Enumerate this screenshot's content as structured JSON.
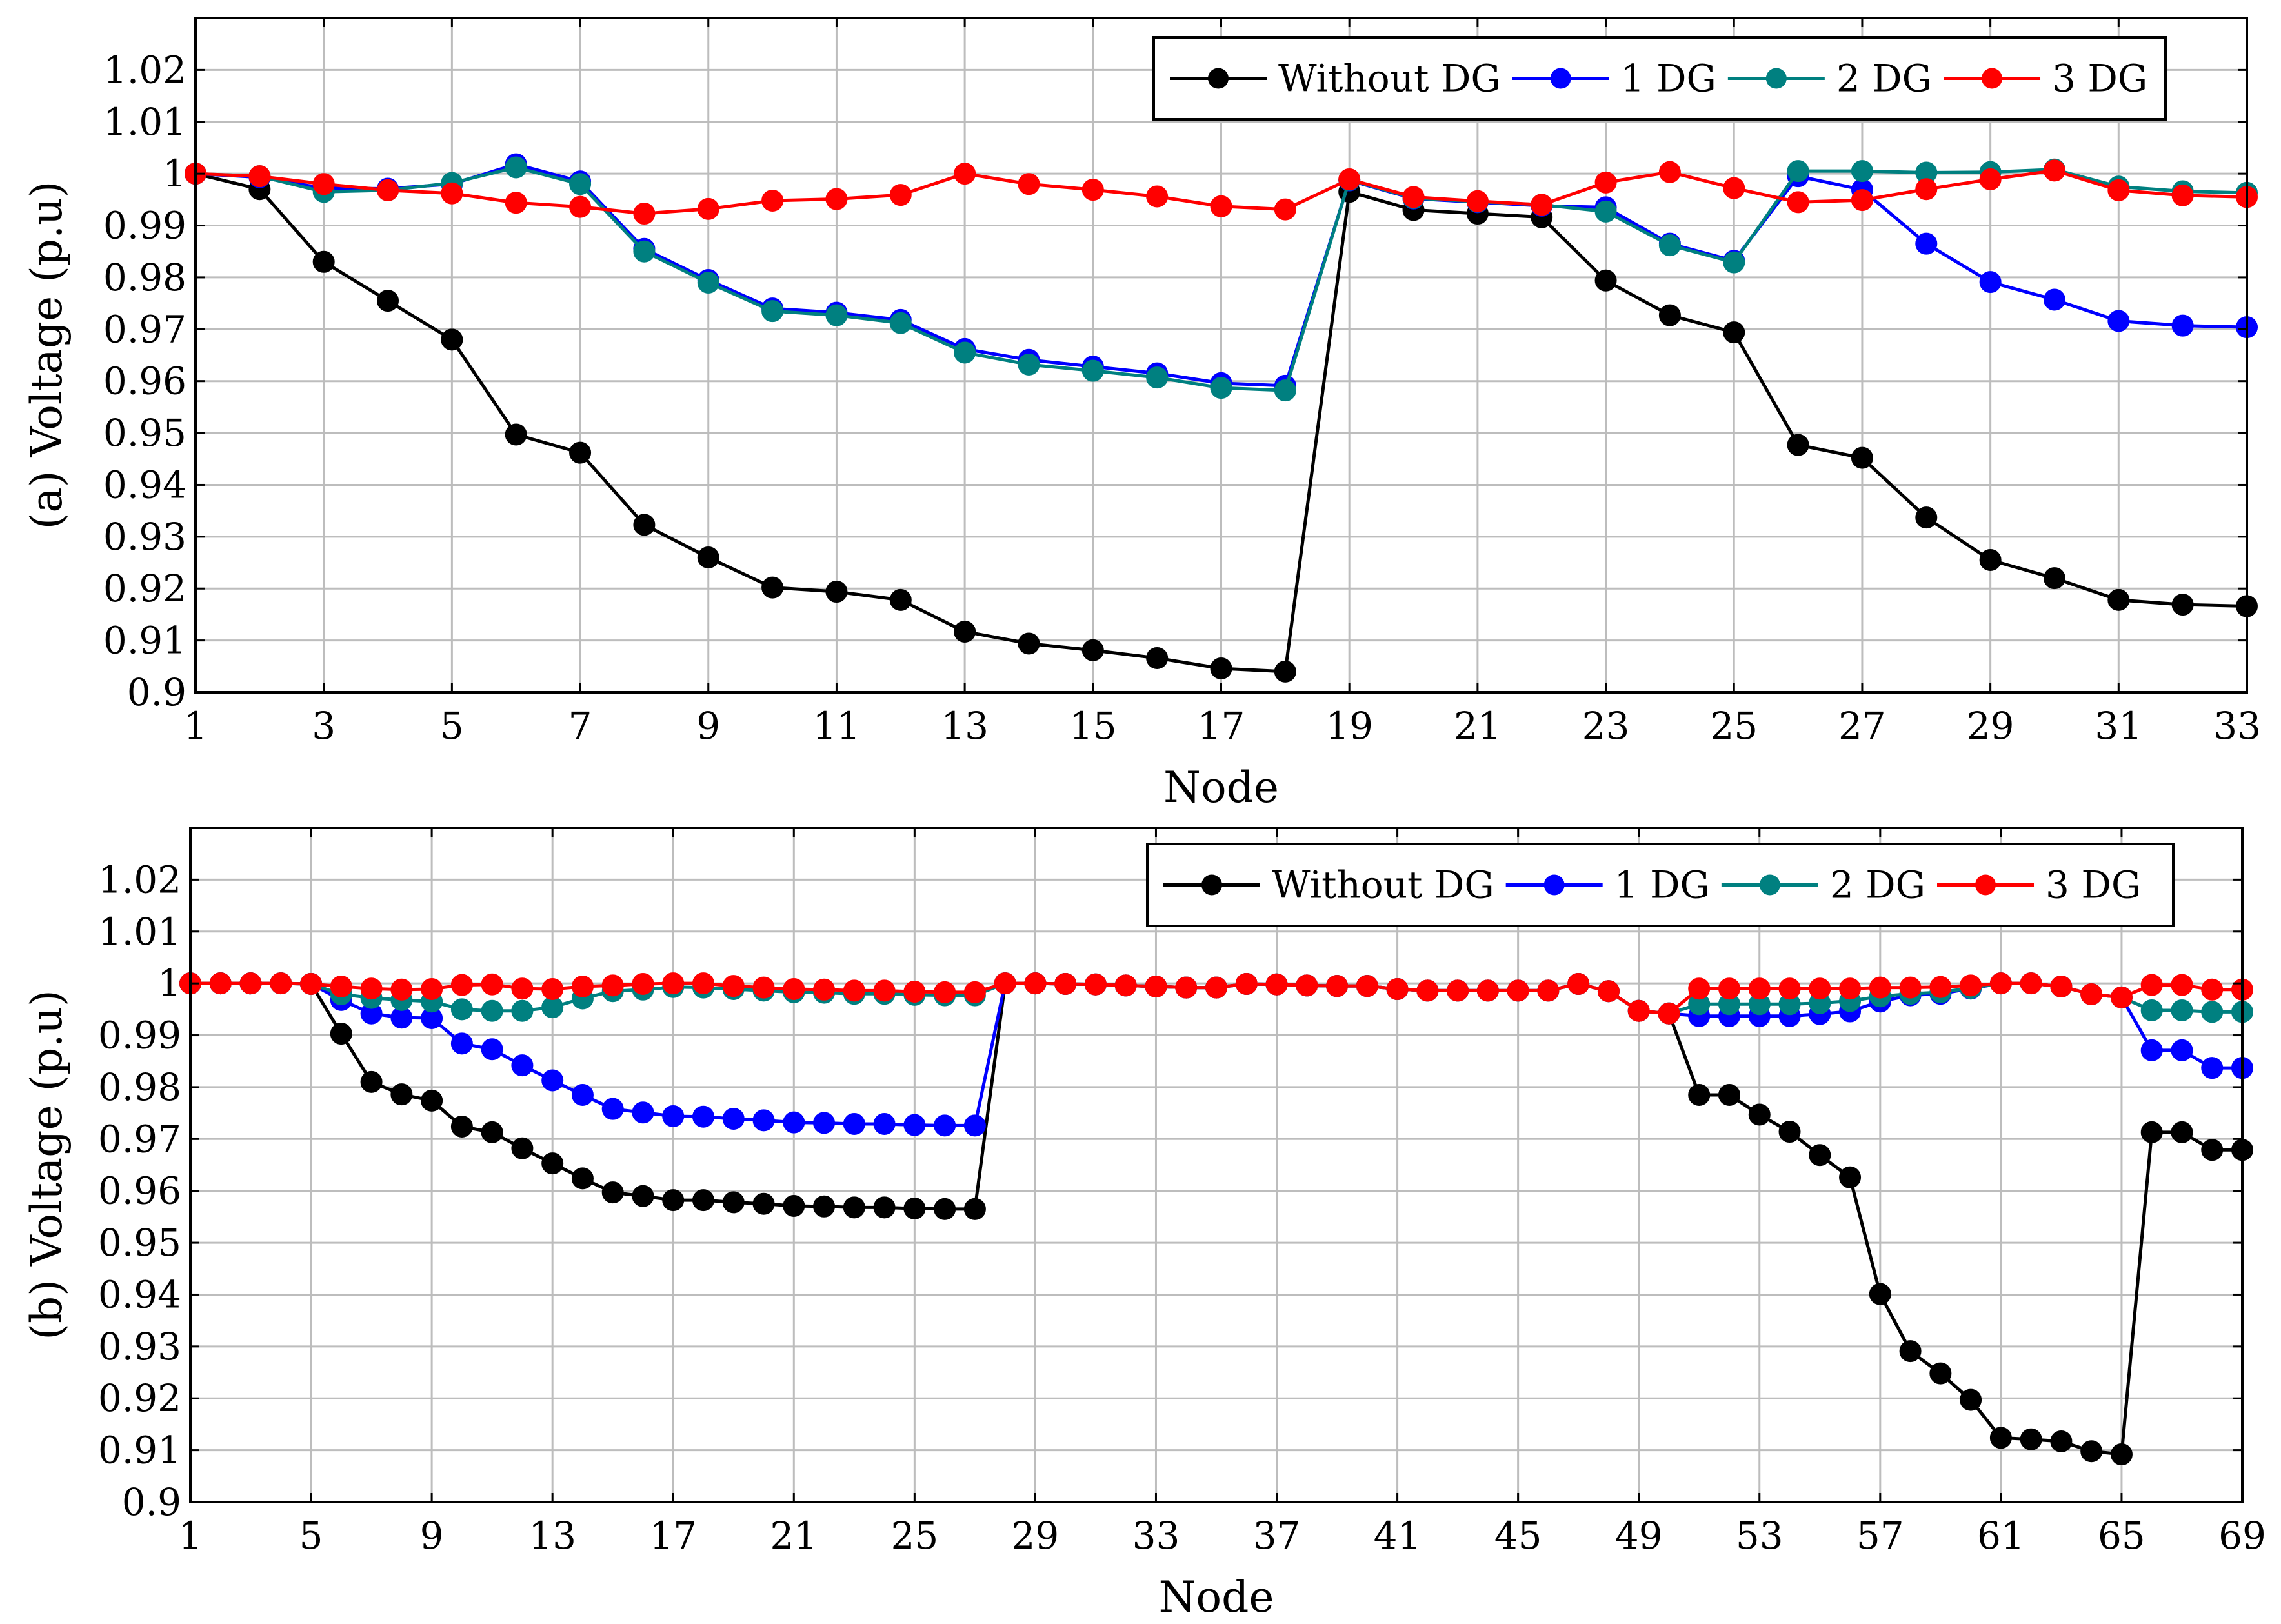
{
  "chart_data": [
    {
      "type": "line",
      "title": "",
      "xlabel": "Node",
      "ylabel": "(a) Voltage (p.u)",
      "xlim": [
        1,
        33
      ],
      "ylim": [
        0.9,
        1.03
      ],
      "xticks": [
        1,
        3,
        5,
        7,
        9,
        11,
        13,
        15,
        17,
        19,
        21,
        23,
        25,
        27,
        29,
        31,
        33
      ],
      "yticks": [
        0.9,
        0.91,
        0.92,
        0.93,
        0.94,
        0.95,
        0.96,
        0.97,
        0.98,
        0.99,
        1,
        1.01,
        1.02
      ],
      "ytick_labels": [
        "0.9",
        "0.91",
        "0.92",
        "0.93",
        "0.94",
        "0.95",
        "0.96",
        "0.97",
        "0.98",
        "0.99",
        "1",
        "1.01",
        "1.02"
      ],
      "grid": true,
      "legend_position": "top-right",
      "x": [
        1,
        2,
        3,
        4,
        5,
        6,
        7,
        8,
        9,
        10,
        11,
        12,
        13,
        14,
        15,
        16,
        17,
        18,
        19,
        20,
        21,
        22,
        23,
        24,
        25,
        26,
        27,
        28,
        29,
        30,
        31,
        32,
        33
      ],
      "series": [
        {
          "name": "Without DG",
          "color": "#000000",
          "values": [
            1.0,
            0.997,
            0.983,
            0.9755,
            0.968,
            0.9497,
            0.9462,
            0.9323,
            0.926,
            0.9202,
            0.9194,
            0.9178,
            0.9117,
            0.9094,
            0.9081,
            0.9066,
            0.9046,
            0.904,
            0.9965,
            0.993,
            0.9923,
            0.9916,
            0.9794,
            0.9727,
            0.9694,
            0.9477,
            0.9452,
            0.9337,
            0.9255,
            0.922,
            0.9178,
            0.9169,
            0.9166
          ]
        },
        {
          "name": "1 DG",
          "color": "#0000ff",
          "values": [
            1.0,
            0.9993,
            0.9972,
            0.9971,
            0.998,
            1.0018,
            0.9985,
            0.9855,
            0.9795,
            0.974,
            0.9732,
            0.9718,
            0.9662,
            0.9641,
            0.9628,
            0.9615,
            0.9596,
            0.9591,
            0.9987,
            0.9952,
            0.9945,
            0.9938,
            0.9935,
            0.9865,
            0.9832,
            0.9995,
            0.9969,
            0.9865,
            0.9791,
            0.9757,
            0.9716,
            0.9707,
            0.9704
          ]
        },
        {
          "name": "2 DG",
          "color": "#008080",
          "values": [
            1.0,
            0.9995,
            0.9965,
            0.9968,
            0.9982,
            1.0012,
            0.998,
            0.985,
            0.979,
            0.9735,
            0.9727,
            0.9712,
            0.9655,
            0.9632,
            0.962,
            0.9607,
            0.9587,
            0.9582,
            0.9988,
            0.9953,
            0.9946,
            0.994,
            0.9927,
            0.9862,
            0.9829,
            1.0005,
            1.0005,
            1.0002,
            1.0003,
            1.0008,
            0.9975,
            0.9966,
            0.9963
          ]
        },
        {
          "name": "3 DG",
          "color": "#ff0000",
          "values": [
            1.0,
            0.9995,
            0.998,
            0.9968,
            0.9962,
            0.9944,
            0.9936,
            0.9923,
            0.9932,
            0.9948,
            0.9951,
            0.9959,
            1.0,
            0.998,
            0.9969,
            0.9956,
            0.9937,
            0.9931,
            0.9989,
            0.9955,
            0.9947,
            0.994,
            0.9983,
            1.0003,
            0.9972,
            0.9945,
            0.9949,
            0.997,
            0.9989,
            1.0006,
            0.9968,
            0.9958,
            0.9955
          ]
        }
      ]
    },
    {
      "type": "line",
      "title": "",
      "xlabel": "Node",
      "ylabel": "(b) Voltage (p.u)",
      "xlim": [
        1,
        69
      ],
      "ylim": [
        0.9,
        1.03
      ],
      "xticks": [
        1,
        5,
        9,
        13,
        17,
        21,
        25,
        29,
        33,
        37,
        41,
        45,
        49,
        53,
        57,
        61,
        65,
        69
      ],
      "yticks": [
        0.9,
        0.91,
        0.92,
        0.93,
        0.94,
        0.95,
        0.96,
        0.97,
        0.98,
        0.99,
        1,
        1.01,
        1.02
      ],
      "ytick_labels": [
        "0.9",
        "0.91",
        "0.92",
        "0.93",
        "0.94",
        "0.95",
        "0.96",
        "0.97",
        "0.98",
        "0.99",
        "1",
        "1.01",
        "1.02"
      ],
      "grid": true,
      "legend_position": "top-right",
      "x": [
        1,
        2,
        3,
        4,
        5,
        6,
        7,
        8,
        9,
        10,
        11,
        12,
        13,
        14,
        15,
        16,
        17,
        18,
        19,
        20,
        21,
        22,
        23,
        24,
        25,
        26,
        27,
        28,
        29,
        30,
        31,
        32,
        33,
        34,
        35,
        36,
        37,
        38,
        39,
        40,
        41,
        42,
        43,
        44,
        45,
        46,
        47,
        48,
        49,
        50,
        51,
        52,
        53,
        54,
        55,
        56,
        57,
        58,
        59,
        60,
        61,
        62,
        63,
        64,
        65,
        66,
        67,
        68,
        69
      ],
      "series": [
        {
          "name": "Without DG",
          "color": "#000000",
          "values": [
            1.0,
            1.0,
            1.0,
            1.0,
            0.9999,
            0.9903,
            0.981,
            0.9786,
            0.9774,
            0.9724,
            0.9713,
            0.9682,
            0.9653,
            0.9624,
            0.9597,
            0.959,
            0.9582,
            0.9582,
            0.9578,
            0.9575,
            0.9571,
            0.957,
            0.9568,
            0.9568,
            0.9566,
            0.9565,
            0.9565,
            1.0,
            1.0,
            0.9999,
            0.9998,
            0.9996,
            0.9994,
            0.9992,
            0.9992,
            0.9999,
            0.9998,
            0.9996,
            0.9995,
            0.9995,
            0.9989,
            0.9986,
            0.9986,
            0.9986,
            0.9986,
            0.9986,
            0.9999,
            0.9985,
            0.9947,
            0.9942,
            0.9785,
            0.9785,
            0.9747,
            0.9714,
            0.9669,
            0.9626,
            0.9401,
            0.9291,
            0.9248,
            0.9197,
            0.9124,
            0.9121,
            0.9117,
            0.9098,
            0.9092,
            0.9713,
            0.9713,
            0.9679,
            0.9679
          ]
        },
        {
          "name": "1 DG",
          "color": "#0000ff",
          "values": [
            1.0,
            1.0,
            1.0,
            1.0,
            0.9999,
            0.9968,
            0.9942,
            0.9934,
            0.9933,
            0.9884,
            0.9873,
            0.9842,
            0.9813,
            0.9785,
            0.9758,
            0.9751,
            0.9744,
            0.9743,
            0.9739,
            0.9736,
            0.9732,
            0.9731,
            0.9729,
            0.9729,
            0.9727,
            0.9726,
            0.9726,
            1.0,
            1.0,
            0.9999,
            0.9998,
            0.9996,
            0.9994,
            0.9992,
            0.9992,
            0.9999,
            0.9998,
            0.9996,
            0.9995,
            0.9995,
            0.9989,
            0.9986,
            0.9986,
            0.9986,
            0.9986,
            0.9986,
            0.9999,
            0.9985,
            0.9947,
            0.9942,
            0.9937,
            0.9937,
            0.9937,
            0.9937,
            0.9941,
            0.9946,
            0.9965,
            0.9977,
            0.998,
            0.999,
            1.0,
            1.0,
            0.9994,
            0.9979,
            0.9973,
            0.9871,
            0.9871,
            0.9837,
            0.9837
          ]
        },
        {
          "name": "2 DG",
          "color": "#008080",
          "values": [
            1.0,
            1.0,
            1.0,
            1.0,
            0.9999,
            0.9979,
            0.9972,
            0.9968,
            0.9965,
            0.995,
            0.9947,
            0.9947,
            0.9954,
            0.9971,
            0.9985,
            0.9988,
            0.9993,
            0.9992,
            0.9989,
            0.9986,
            0.9983,
            0.9982,
            0.998,
            0.998,
            0.9978,
            0.9977,
            0.9977,
            1.0,
            1.0,
            0.9999,
            0.9998,
            0.9996,
            0.9994,
            0.9992,
            0.9992,
            0.9999,
            0.9998,
            0.9996,
            0.9995,
            0.9995,
            0.9989,
            0.9986,
            0.9986,
            0.9986,
            0.9986,
            0.9986,
            0.9999,
            0.9985,
            0.9947,
            0.9942,
            0.996,
            0.996,
            0.996,
            0.996,
            0.9962,
            0.9966,
            0.9975,
            0.998,
            0.9983,
            0.9991,
            1.0,
            1.0,
            0.9994,
            0.9979,
            0.9973,
            0.9948,
            0.9948,
            0.9945,
            0.9945
          ]
        },
        {
          "name": "3 DG",
          "color": "#ff0000",
          "values": [
            1.0,
            1.0,
            1.0,
            1.0,
            0.9999,
            0.9994,
            0.999,
            0.9988,
            0.9989,
            0.9997,
            0.9998,
            0.999,
            0.9989,
            0.9994,
            0.9996,
            0.9999,
            1.0,
            1.0,
            0.9995,
            0.9992,
            0.9989,
            0.9988,
            0.9986,
            0.9986,
            0.9984,
            0.9983,
            0.9983,
            1.0,
            1.0,
            0.9999,
            0.9998,
            0.9996,
            0.9994,
            0.9992,
            0.9992,
            0.9999,
            0.9998,
            0.9996,
            0.9995,
            0.9995,
            0.9989,
            0.9986,
            0.9986,
            0.9986,
            0.9986,
            0.9986,
            0.9999,
            0.9985,
            0.9947,
            0.9942,
            0.999,
            0.999,
            0.999,
            0.999,
            0.999,
            0.999,
            0.9992,
            0.9992,
            0.9993,
            0.9996,
            1.0,
            1.0,
            0.9994,
            0.9979,
            0.9973,
            0.9997,
            0.9997,
            0.9988,
            0.9988
          ]
        }
      ]
    }
  ]
}
